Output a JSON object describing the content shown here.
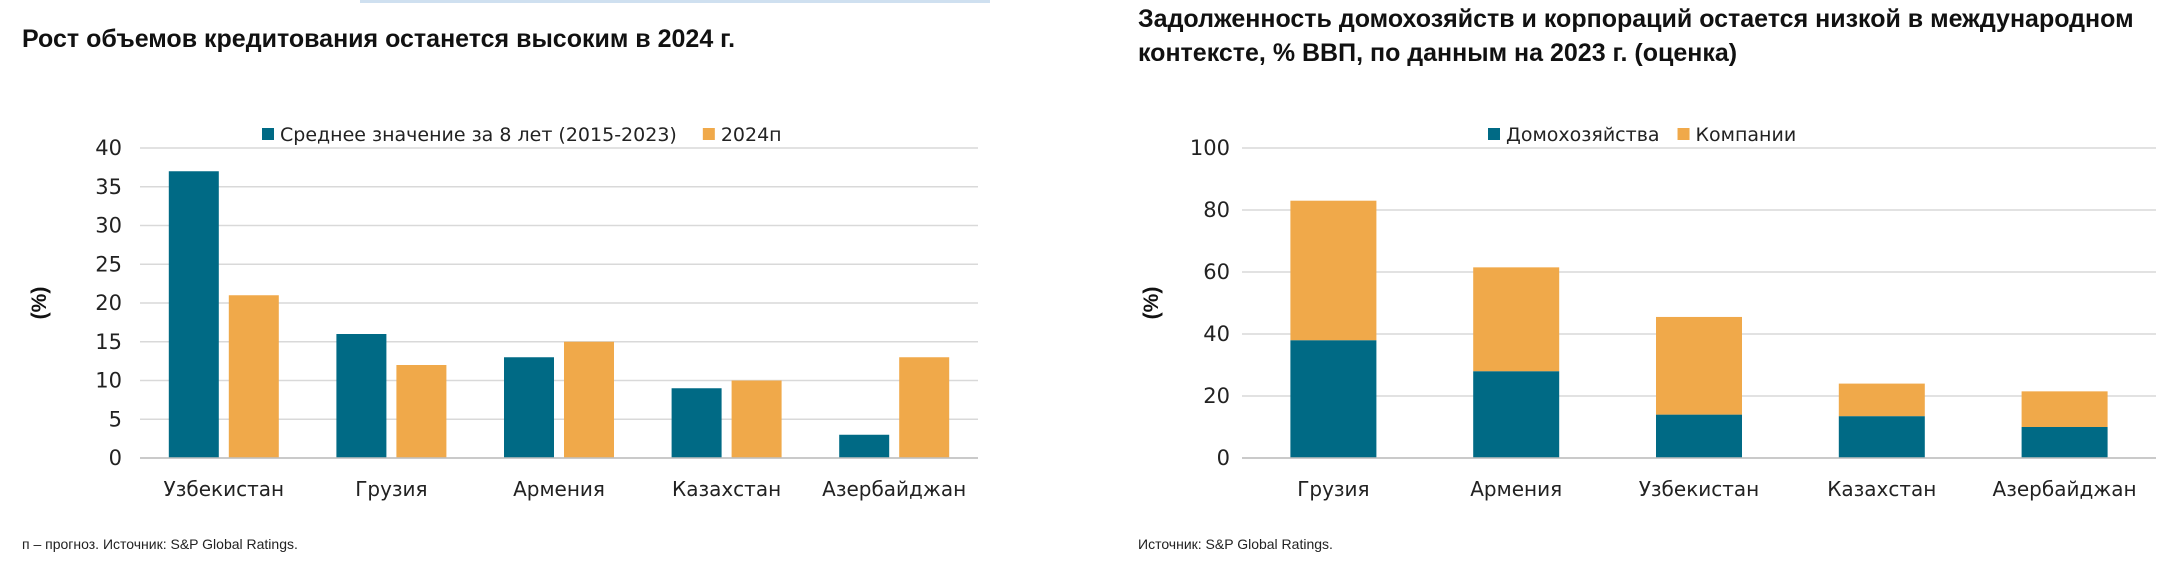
{
  "left": {
    "title": "Рост объемов кредитования останется высоким в 2024 г.",
    "footnote": "п – прогноз. Источник: S&P Global Ratings.",
    "chart_data": {
      "type": "bar",
      "title": "Рост объемов кредитования останется высоким в 2024 г.",
      "ylabel": "(%)",
      "ylim": [
        0,
        40
      ],
      "yticks": [
        0,
        5,
        10,
        15,
        20,
        25,
        30,
        35,
        40
      ],
      "categories": [
        "Узбекистан",
        "Грузия",
        "Армения",
        "Казахстан",
        "Азербайджан"
      ],
      "series": [
        {
          "name": "Среднее значение за 8 лет (2015-2023)",
          "color": "#006a85",
          "values": [
            37,
            16,
            13,
            9,
            3
          ]
        },
        {
          "name": "2024п",
          "color": "#f0a94a",
          "values": [
            21,
            12,
            15,
            10,
            13
          ]
        }
      ],
      "legend": "top",
      "grid": true
    }
  },
  "right": {
    "title": "Задолженность домохозяйств и корпораций остается низкой в международном контексте, % ВВП, по данным на 2023 г. (оценка)",
    "footnote": "Источник: S&P Global Ratings.",
    "chart_data": {
      "type": "bar",
      "stacked": true,
      "title": "Задолженность домохозяйств и корпораций остается низкой в международном контексте, % ВВП, по данным на 2023 г. (оценка)",
      "ylabel": "(%)",
      "ylim": [
        0,
        100
      ],
      "yticks": [
        0,
        20,
        40,
        60,
        80,
        100
      ],
      "categories": [
        "Грузия",
        "Армения",
        "Узбекистан",
        "Казахстан",
        "Азербайджан"
      ],
      "series": [
        {
          "name": "Домохозяйства",
          "color": "#006a85",
          "values": [
            38,
            28,
            14,
            13.5,
            10
          ]
        },
        {
          "name": "Компании",
          "color": "#f0a94a",
          "values": [
            45,
            33.5,
            31.5,
            10.5,
            11.5
          ]
        }
      ],
      "legend": "top",
      "grid": true
    }
  }
}
